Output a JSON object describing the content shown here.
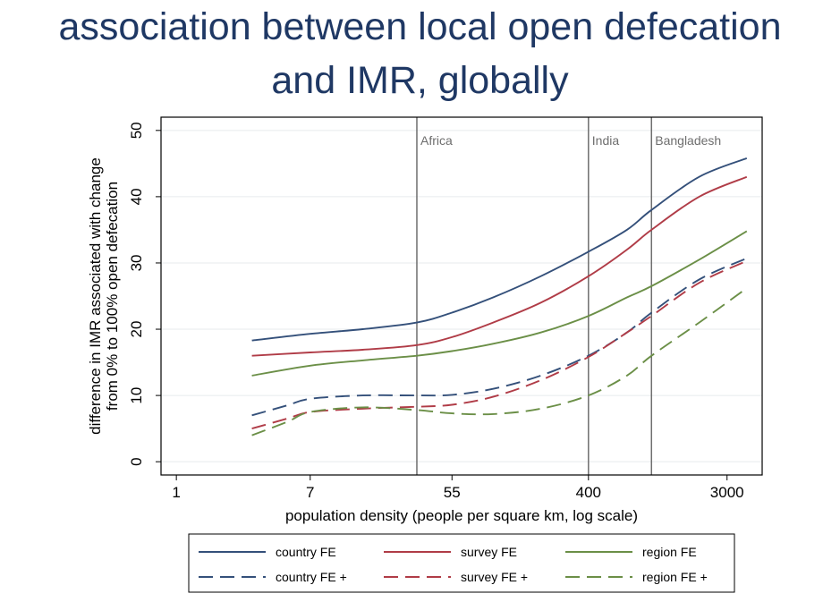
{
  "page": {
    "title_line1": "association between local open defecation",
    "title_line2": "and IMR, globally"
  },
  "chart_data": {
    "type": "line",
    "xlabel": "population density (people per square km, log scale)",
    "ylabel_line1": "difference in IMR associated with change",
    "ylabel_line2": "from 0% to 100% open defecation",
    "x_scale": "log",
    "xlim": [
      0.8,
      5000
    ],
    "ylim": [
      -2,
      52
    ],
    "x_ticks": [
      1,
      7,
      55,
      400,
      3000
    ],
    "x_tick_labels": [
      "1",
      "7",
      "55",
      "400",
      "3000"
    ],
    "y_ticks": [
      0,
      10,
      20,
      30,
      40,
      50
    ],
    "y_tick_labels": [
      "0",
      "10",
      "20",
      "30",
      "40",
      "50"
    ],
    "grid": true,
    "legend_position": "bottom",
    "reference_lines": [
      {
        "label": "Africa",
        "x": 33
      },
      {
        "label": "India",
        "x": 400
      },
      {
        "label": "Bangladesh",
        "x": 1000
      }
    ],
    "series": [
      {
        "name": "country FE",
        "color": "#34507a",
        "dashed": false,
        "points": [
          [
            3,
            18.3
          ],
          [
            7,
            19.3
          ],
          [
            15,
            20.0
          ],
          [
            33,
            21.0
          ],
          [
            55,
            22.5
          ],
          [
            100,
            24.8
          ],
          [
            200,
            28.0
          ],
          [
            400,
            31.7
          ],
          [
            700,
            35.0
          ],
          [
            1000,
            38.0
          ],
          [
            2000,
            43.0
          ],
          [
            4000,
            45.8
          ]
        ]
      },
      {
        "name": "survey FE",
        "color": "#b03c47",
        "dashed": false,
        "points": [
          [
            3,
            16.0
          ],
          [
            7,
            16.5
          ],
          [
            15,
            16.9
          ],
          [
            33,
            17.6
          ],
          [
            55,
            18.8
          ],
          [
            100,
            21.0
          ],
          [
            200,
            24.0
          ],
          [
            400,
            28.0
          ],
          [
            700,
            32.0
          ],
          [
            1000,
            35.0
          ],
          [
            2000,
            40.0
          ],
          [
            4000,
            43.0
          ]
        ]
      },
      {
        "name": "region FE",
        "color": "#6b8f47",
        "dashed": false,
        "points": [
          [
            3,
            13.0
          ],
          [
            7,
            14.5
          ],
          [
            15,
            15.3
          ],
          [
            33,
            16.0
          ],
          [
            55,
            16.7
          ],
          [
            100,
            17.8
          ],
          [
            200,
            19.5
          ],
          [
            400,
            22.0
          ],
          [
            700,
            24.8
          ],
          [
            1000,
            26.5
          ],
          [
            2000,
            30.5
          ],
          [
            4000,
            34.8
          ]
        ]
      },
      {
        "name": "country FE +",
        "color": "#34507a",
        "dashed": true,
        "points": [
          [
            3,
            7.0
          ],
          [
            5,
            8.5
          ],
          [
            7,
            9.5
          ],
          [
            15,
            10.0
          ],
          [
            33,
            10.0
          ],
          [
            55,
            10.1
          ],
          [
            100,
            11.0
          ],
          [
            200,
            13.0
          ],
          [
            400,
            16.0
          ],
          [
            700,
            19.5
          ],
          [
            1000,
            22.5
          ],
          [
            2000,
            27.5
          ],
          [
            4000,
            30.7
          ]
        ]
      },
      {
        "name": "survey FE +",
        "color": "#b03c47",
        "dashed": true,
        "points": [
          [
            3,
            5.0
          ],
          [
            5,
            6.5
          ],
          [
            7,
            7.5
          ],
          [
            15,
            8.0
          ],
          [
            33,
            8.3
          ],
          [
            55,
            8.6
          ],
          [
            100,
            9.8
          ],
          [
            200,
            12.3
          ],
          [
            400,
            15.8
          ],
          [
            700,
            19.5
          ],
          [
            1000,
            22.0
          ],
          [
            2000,
            27.0
          ],
          [
            4000,
            30.3
          ]
        ]
      },
      {
        "name": "region FE +",
        "color": "#6b8f47",
        "dashed": true,
        "points": [
          [
            3,
            4.0
          ],
          [
            5,
            6.0
          ],
          [
            7,
            7.5
          ],
          [
            15,
            8.2
          ],
          [
            33,
            7.8
          ],
          [
            55,
            7.3
          ],
          [
            100,
            7.2
          ],
          [
            200,
            8.0
          ],
          [
            400,
            10.0
          ],
          [
            700,
            13.0
          ],
          [
            1000,
            16.0
          ],
          [
            2000,
            21.0
          ],
          [
            4000,
            26.2
          ]
        ]
      }
    ]
  }
}
